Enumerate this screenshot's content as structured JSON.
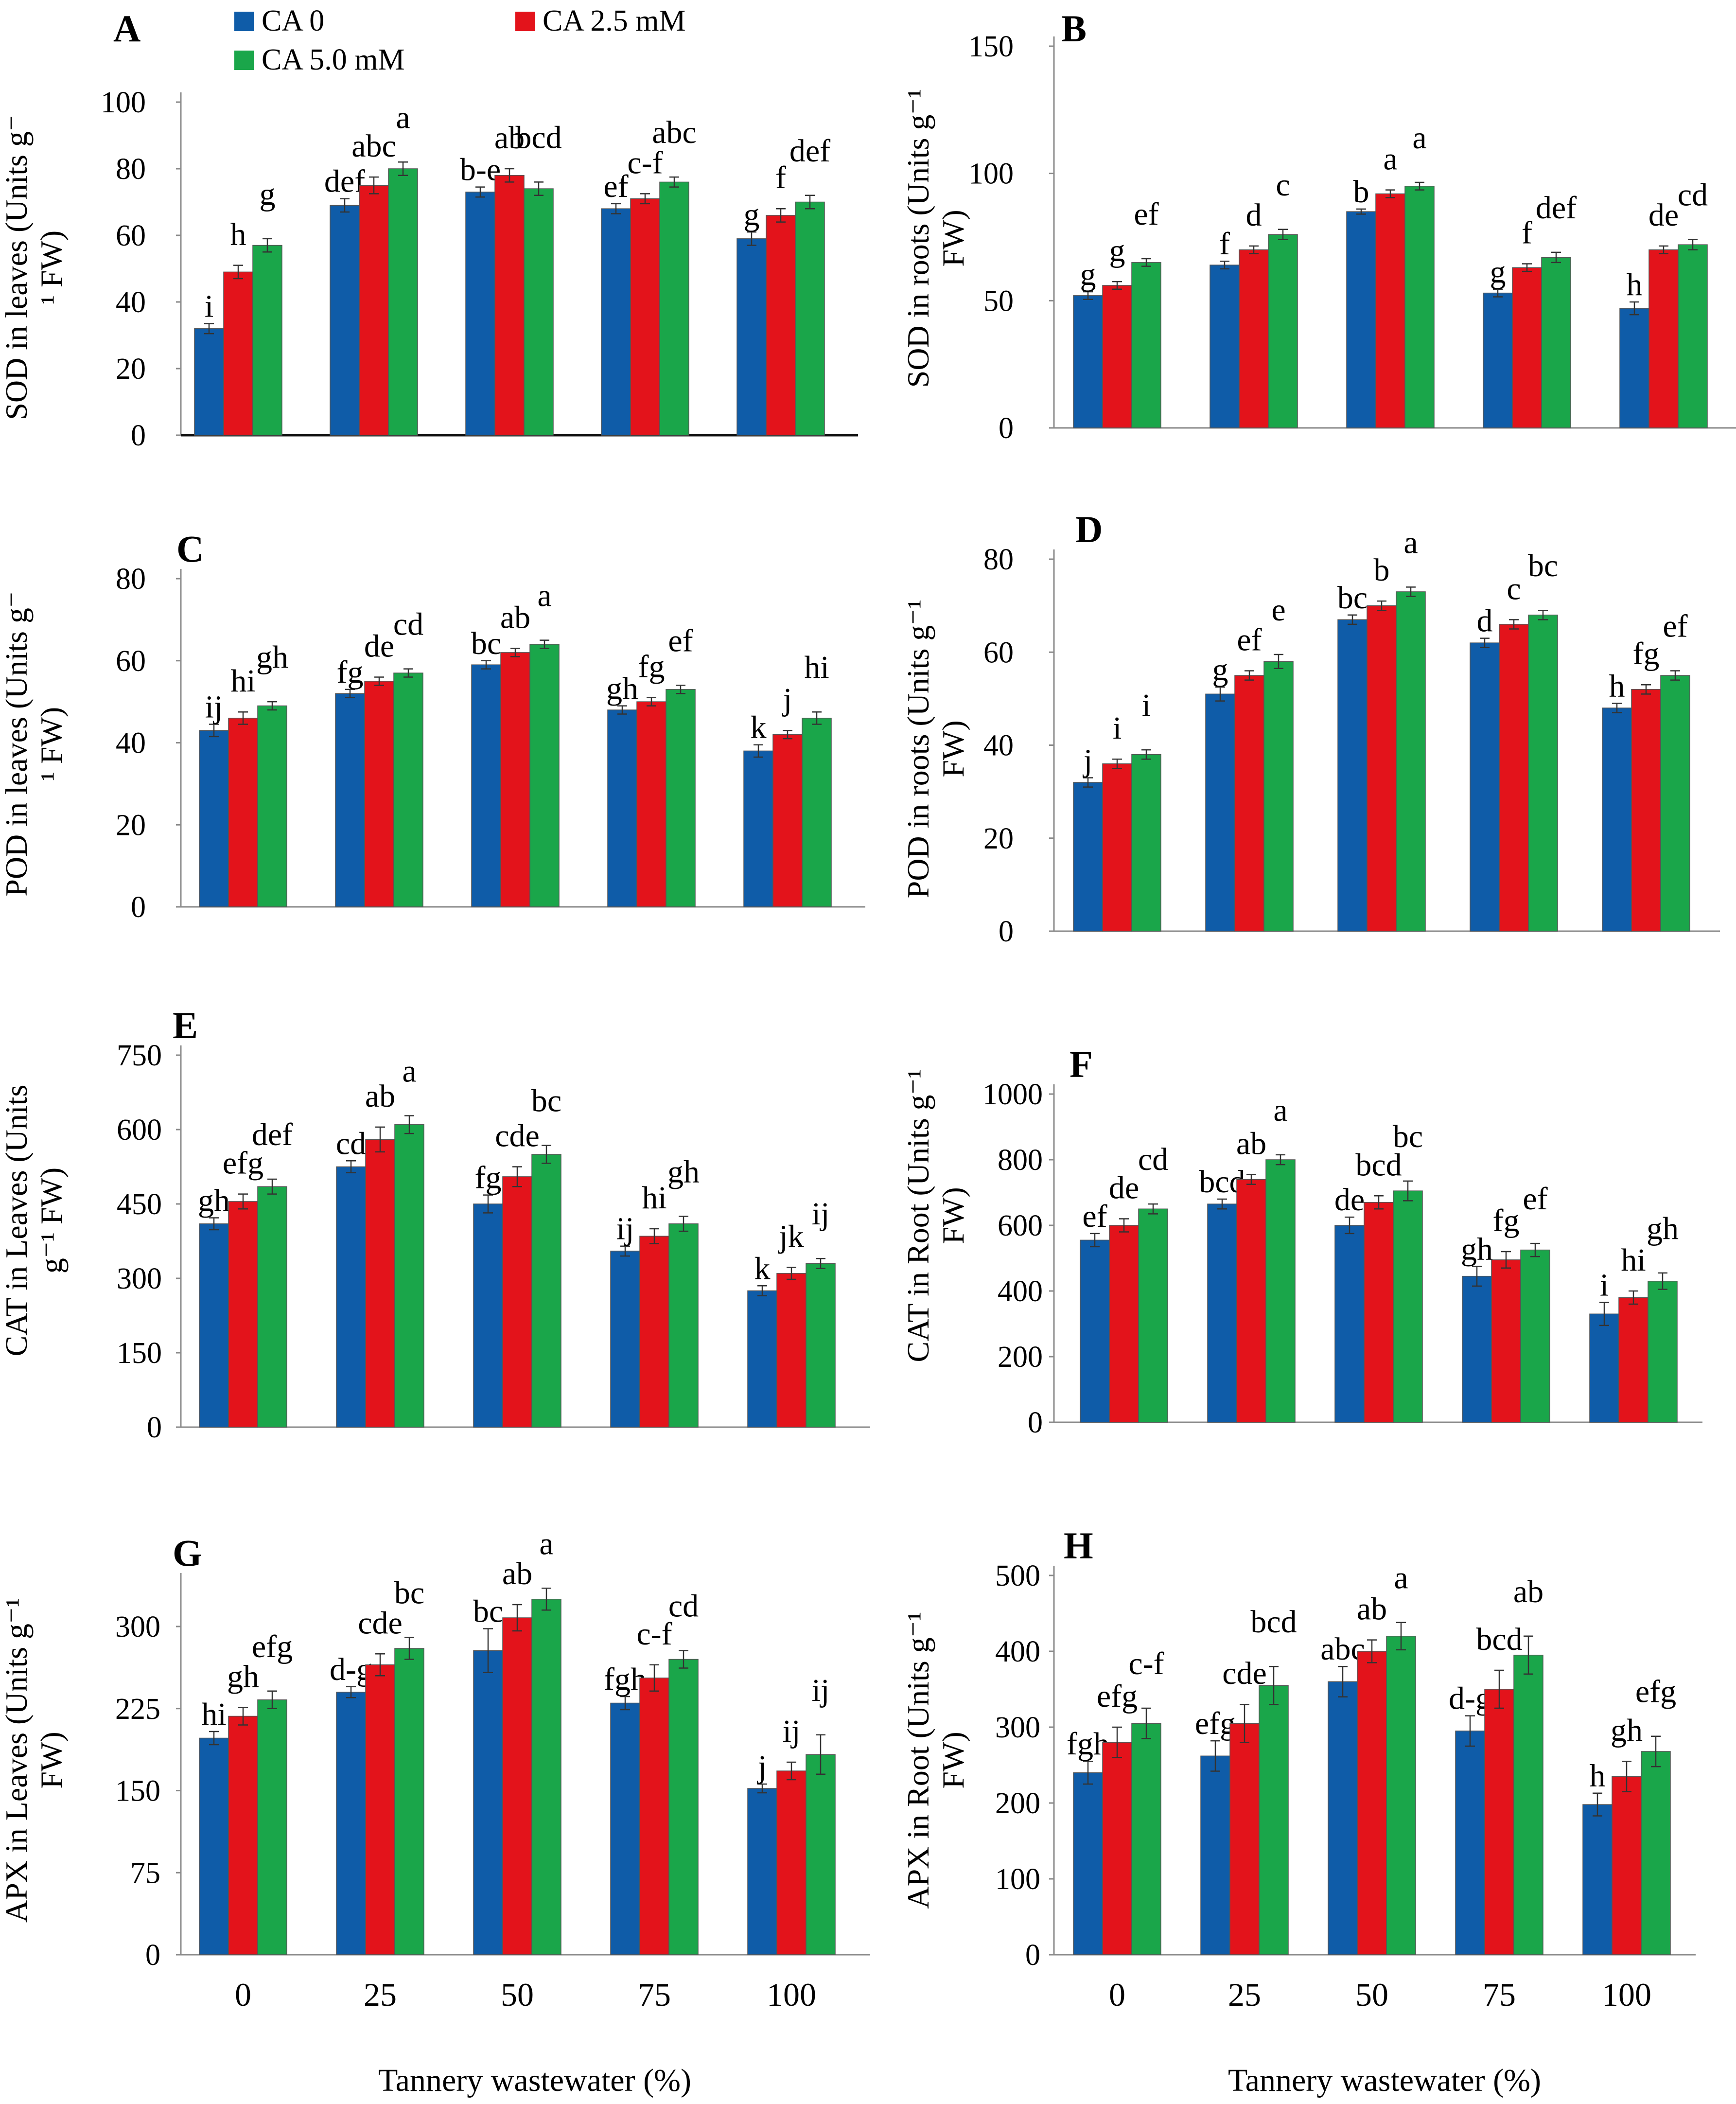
{
  "legend": [
    {
      "label": "CA 0",
      "color": "#0f5ca8"
    },
    {
      "label": "CA 2.5 mM",
      "color": "#e3131b"
    },
    {
      "label": "CA 5.0 mM",
      "color": "#1aa64a"
    }
  ],
  "x_axis_title": "Tannery wastewater (%)",
  "chart_data": [
    {
      "type": "bar",
      "panel": "A",
      "ylabel_lines": [
        "SOD in leaves (Units g⁻",
        "¹ FW)"
      ],
      "categories": [
        "0",
        "25",
        "50",
        "75",
        "100"
      ],
      "ylim": [
        0,
        100
      ],
      "yticks": [
        0,
        20,
        40,
        60,
        80,
        100
      ],
      "show_xticks": false,
      "baseline_dark": true,
      "series": [
        {
          "name": "CA 0",
          "values": [
            32,
            69,
            73,
            68,
            59
          ],
          "errors": [
            1.5,
            2,
            1.5,
            1.5,
            2
          ],
          "letters": [
            "i",
            "def",
            "b-e",
            "ef",
            "g"
          ]
        },
        {
          "name": "CA 2.5 mM",
          "values": [
            49,
            75,
            78,
            71,
            66
          ],
          "errors": [
            2,
            2.5,
            2,
            1.5,
            2
          ],
          "letters": [
            "h",
            "abc",
            "ab",
            "c-f",
            "f"
          ]
        },
        {
          "name": "CA 5.0 mM",
          "values": [
            57,
            80,
            74,
            76,
            70
          ],
          "errors": [
            2,
            2,
            2,
            1.5,
            2
          ],
          "letters": [
            "g",
            "a",
            "bcd",
            "abc",
            "def"
          ]
        }
      ]
    },
    {
      "type": "bar",
      "panel": "B",
      "ylabel_lines": [
        "SOD in roots (Units g⁻¹",
        "FW)"
      ],
      "categories": [
        "0",
        "25",
        "50",
        "75",
        "100"
      ],
      "ylim": [
        0,
        150
      ],
      "yticks": [
        0,
        50,
        100,
        150
      ],
      "show_xticks": false,
      "baseline_dark": false,
      "series": [
        {
          "name": "CA 0",
          "values": [
            52,
            64,
            85,
            53,
            47
          ],
          "errors": [
            1.5,
            1.5,
            1,
            1.5,
            2.5
          ],
          "letters": [
            "g",
            "f",
            "b",
            "g",
            "h"
          ]
        },
        {
          "name": "CA 2.5 mM",
          "values": [
            56,
            70,
            92,
            63,
            70
          ],
          "errors": [
            1.5,
            1.5,
            1.5,
            1.5,
            1.5
          ],
          "letters": [
            "g",
            "d",
            "a",
            "f",
            "de"
          ]
        },
        {
          "name": "CA 5.0 mM",
          "values": [
            65,
            76,
            95,
            67,
            72
          ],
          "errors": [
            1.5,
            2,
            1.5,
            2,
            2
          ],
          "letters": [
            "ef",
            "c",
            "a",
            "def",
            "cd"
          ]
        }
      ]
    },
    {
      "type": "bar",
      "panel": "C",
      "ylabel_lines": [
        "POD in leaves (Units g⁻",
        "¹ FW)"
      ],
      "categories": [
        "0",
        "25",
        "50",
        "75",
        "100"
      ],
      "ylim": [
        0,
        80
      ],
      "yticks": [
        0,
        20,
        40,
        60,
        80
      ],
      "show_xticks": false,
      "baseline_dark": false,
      "series": [
        {
          "name": "CA 0",
          "values": [
            43,
            52,
            59,
            48,
            38
          ],
          "errors": [
            1.5,
            1,
            1,
            1,
            1.5
          ],
          "letters": [
            "ij",
            "fg",
            "bc",
            "gh",
            "k"
          ]
        },
        {
          "name": "CA 2.5 mM",
          "values": [
            46,
            55,
            62,
            50,
            42
          ],
          "errors": [
            1.5,
            1,
            1,
            1,
            1
          ],
          "letters": [
            "hi",
            "de",
            "ab",
            "fg",
            "j"
          ]
        },
        {
          "name": "CA 5.0 mM",
          "values": [
            49,
            57,
            64,
            53,
            46
          ],
          "errors": [
            1,
            1,
            1,
            1,
            1.5
          ],
          "letters": [
            "gh",
            "cd",
            "a",
            "ef",
            "hi"
          ]
        }
      ]
    },
    {
      "type": "bar",
      "panel": "D",
      "ylabel_lines": [
        "POD in roots (Units g⁻¹",
        "FW)"
      ],
      "categories": [
        "0",
        "25",
        "50",
        "75",
        "100"
      ],
      "ylim": [
        0,
        80
      ],
      "yticks": [
        0,
        20,
        40,
        60,
        80
      ],
      "show_xticks": false,
      "baseline_dark": false,
      "series": [
        {
          "name": "CA 0",
          "values": [
            32,
            51,
            67,
            62,
            48
          ],
          "errors": [
            1,
            1.5,
            1,
            1,
            1
          ],
          "letters": [
            "j",
            "g",
            "bc",
            "d",
            "h"
          ]
        },
        {
          "name": "CA 2.5 mM",
          "values": [
            36,
            55,
            70,
            66,
            52
          ],
          "errors": [
            1,
            1,
            1,
            1,
            1
          ],
          "letters": [
            "i",
            "ef",
            "b",
            "c",
            "fg"
          ]
        },
        {
          "name": "CA 5.0 mM",
          "values": [
            38,
            58,
            73,
            68,
            55
          ],
          "errors": [
            1,
            1.5,
            1,
            1,
            1
          ],
          "letters": [
            "i",
            "e",
            "a",
            "bc",
            "ef"
          ]
        }
      ]
    },
    {
      "type": "bar",
      "panel": "E",
      "ylabel_lines": [
        "CAT in Leaves (Units",
        "g⁻¹ FW)"
      ],
      "categories": [
        "0",
        "25",
        "50",
        "75",
        "100"
      ],
      "ylim": [
        0,
        750
      ],
      "yticks": [
        0,
        150,
        300,
        450,
        600,
        750
      ],
      "show_xticks": false,
      "baseline_dark": false,
      "series": [
        {
          "name": "CA 0",
          "values": [
            410,
            525,
            450,
            355,
            275
          ],
          "errors": [
            12,
            12,
            18,
            10,
            10
          ],
          "letters": [
            "gh",
            "cd",
            "fg",
            "ij",
            "k"
          ]
        },
        {
          "name": "CA 2.5 mM",
          "values": [
            455,
            580,
            505,
            385,
            310
          ],
          "errors": [
            15,
            25,
            20,
            15,
            12
          ],
          "letters": [
            "efg",
            "ab",
            "cde",
            "hi",
            "jk"
          ]
        },
        {
          "name": "CA 5.0 mM",
          "values": [
            485,
            610,
            550,
            410,
            330
          ],
          "errors": [
            15,
            18,
            18,
            15,
            10
          ],
          "letters": [
            "def",
            "a",
            "bc",
            "gh",
            "ij"
          ]
        }
      ]
    },
    {
      "type": "bar",
      "panel": "F",
      "ylabel_lines": [
        "CAT in Root (Units g⁻¹",
        "FW)"
      ],
      "categories": [
        "0",
        "25",
        "50",
        "75",
        "100"
      ],
      "ylim": [
        0,
        1000
      ],
      "yticks": [
        0,
        200,
        400,
        600,
        800,
        1000
      ],
      "show_xticks": false,
      "baseline_dark": false,
      "series": [
        {
          "name": "CA 0",
          "values": [
            555,
            665,
            600,
            445,
            330
          ],
          "errors": [
            20,
            15,
            25,
            30,
            35
          ],
          "letters": [
            "ef",
            "bcd",
            "de",
            "gh",
            "i"
          ]
        },
        {
          "name": "CA 2.5 mM",
          "values": [
            600,
            740,
            670,
            495,
            380
          ],
          "errors": [
            20,
            15,
            20,
            25,
            20
          ],
          "letters": [
            "de",
            "ab",
            "bcd",
            "fg",
            "hi"
          ]
        },
        {
          "name": "CA 5.0 mM",
          "values": [
            650,
            800,
            705,
            525,
            430
          ],
          "errors": [
            15,
            15,
            30,
            20,
            25
          ],
          "letters": [
            "cd",
            "a",
            "bc",
            "ef",
            "gh"
          ]
        }
      ]
    },
    {
      "type": "bar",
      "panel": "G",
      "ylabel_lines": [
        "APX in Leaves (Units g⁻¹",
        "FW)"
      ],
      "categories": [
        "0",
        "25",
        "50",
        "75",
        "100"
      ],
      "ylim": [
        0,
        340
      ],
      "yticks": [
        0,
        75,
        150,
        225,
        300
      ],
      "show_xticks": true,
      "baseline_dark": false,
      "series": [
        {
          "name": "CA 0",
          "values": [
            198,
            240,
            278,
            230,
            152
          ],
          "errors": [
            6,
            5,
            20,
            6,
            4
          ],
          "letters": [
            "hi",
            "d-g",
            "bc",
            "fgh",
            "j"
          ]
        },
        {
          "name": "CA 2.5 mM",
          "values": [
            218,
            265,
            308,
            253,
            168
          ],
          "errors": [
            8,
            10,
            12,
            12,
            8
          ],
          "letters": [
            "gh",
            "cde",
            "ab",
            "c-f",
            "ij"
          ]
        },
        {
          "name": "CA 5.0 mM",
          "values": [
            233,
            280,
            325,
            270,
            183
          ],
          "errors": [
            8,
            10,
            10,
            8,
            18
          ],
          "letters": [
            "efg",
            "bc",
            "a",
            "cd",
            "ij"
          ]
        }
      ]
    },
    {
      "type": "bar",
      "panel": "H",
      "ylabel_lines": [
        "APX in Root (Units g⁻¹",
        "FW)"
      ],
      "categories": [
        "0",
        "25",
        "50",
        "75",
        "100"
      ],
      "ylim": [
        0,
        500
      ],
      "yticks": [
        0,
        100,
        200,
        300,
        400,
        500
      ],
      "show_xticks": true,
      "baseline_dark": false,
      "series": [
        {
          "name": "CA 0",
          "values": [
            240,
            262,
            360,
            295,
            198
          ],
          "errors": [
            15,
            20,
            20,
            20,
            15
          ],
          "letters": [
            "fgh",
            "efg",
            "abc",
            "d-g",
            "h"
          ]
        },
        {
          "name": "CA 2.5 mM",
          "values": [
            280,
            305,
            400,
            350,
            235
          ],
          "errors": [
            20,
            25,
            15,
            25,
            20
          ],
          "letters": [
            "efg",
            "cde",
            "ab",
            "bcd",
            "gh"
          ]
        },
        {
          "name": "CA 5.0 mM",
          "values": [
            305,
            355,
            420,
            395,
            268
          ],
          "errors": [
            20,
            25,
            18,
            25,
            20
          ],
          "letters": [
            "c-f",
            "bcd",
            "a",
            "ab",
            "efg"
          ]
        }
      ]
    }
  ]
}
